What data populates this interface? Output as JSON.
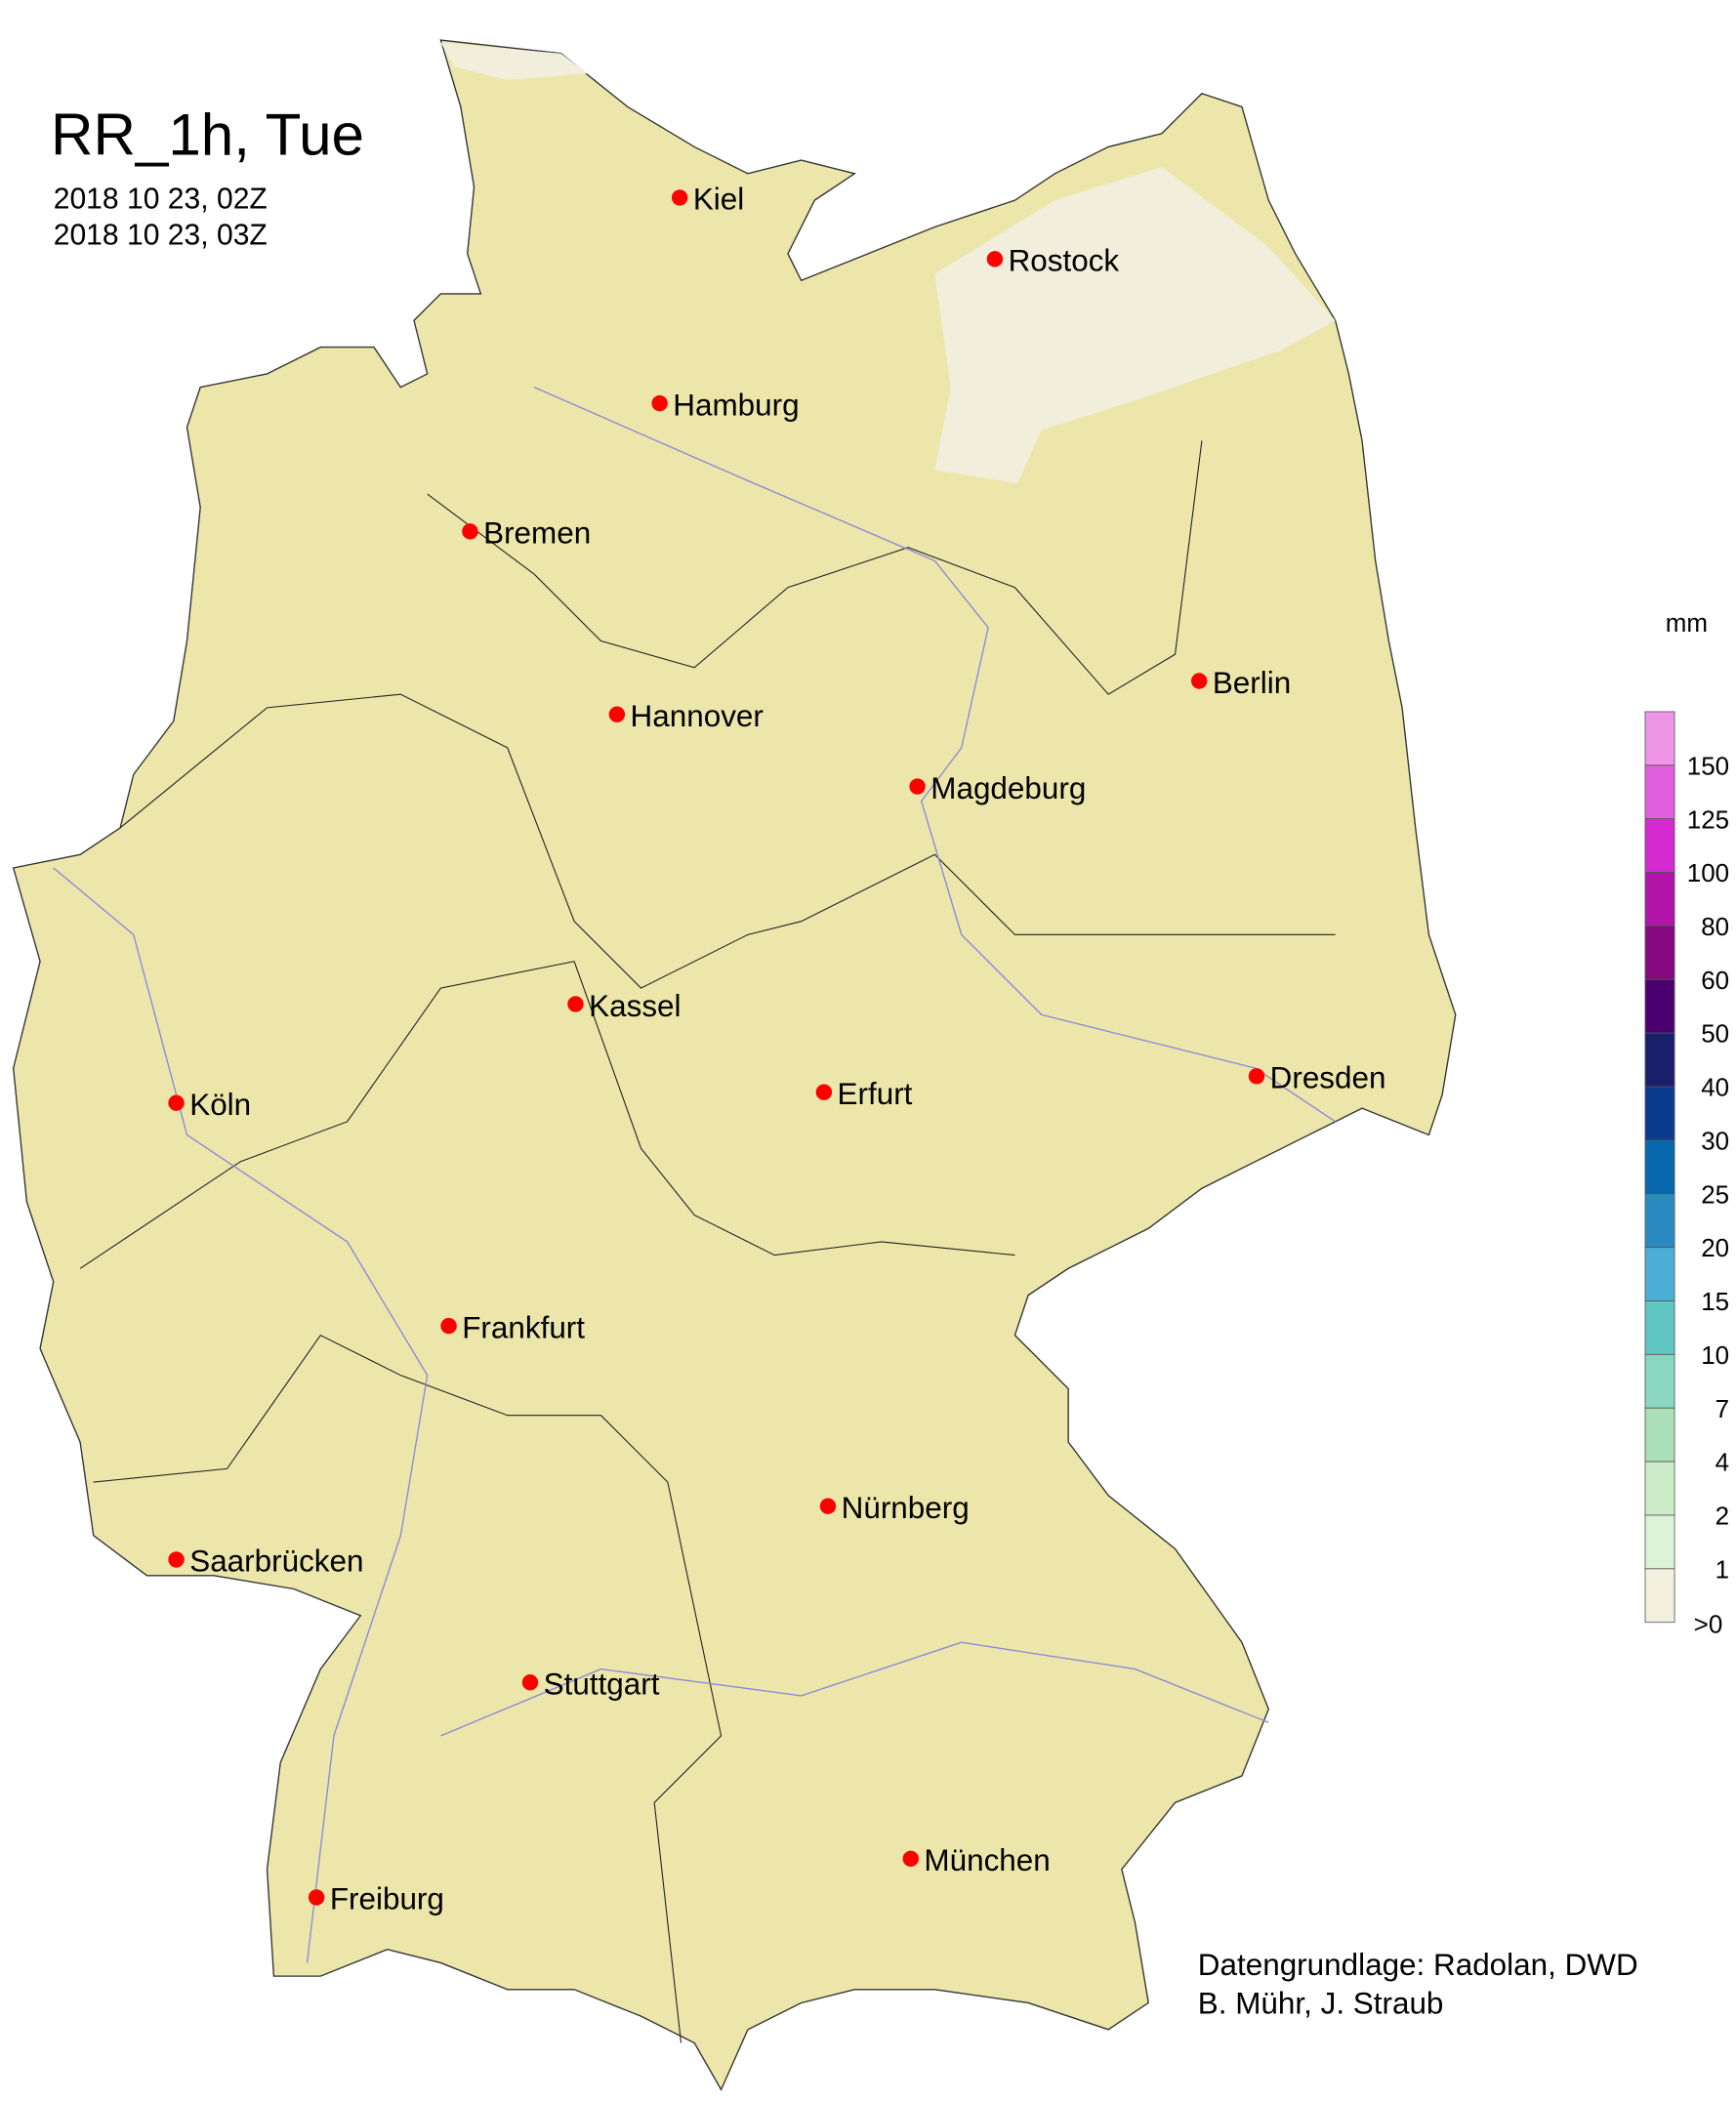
{
  "title": "RR_1h, Tue",
  "time_start": "2018 10 23, 02Z",
  "time_end": "2018 10 23, 03Z",
  "legend": {
    "unit": "mm",
    "classes": [
      {
        "label": "",
        "color": "#ee96e6"
      },
      {
        "label": "150",
        "color": "#e15fdf"
      },
      {
        "label": "125",
        "color": "#d42acf"
      },
      {
        "label": "100",
        "color": "#b014a8"
      },
      {
        "label": "80",
        "color": "#84087e"
      },
      {
        "label": "60",
        "color": "#4b0070"
      },
      {
        "label": "50",
        "color": "#1a1f6b"
      },
      {
        "label": "40",
        "color": "#0a3a8c"
      },
      {
        "label": "30",
        "color": "#0768ad"
      },
      {
        "label": "25",
        "color": "#2a8abf"
      },
      {
        "label": "20",
        "color": "#4aaed6"
      },
      {
        "label": "15",
        "color": "#60c6c4"
      },
      {
        "label": "10",
        "color": "#8ad6c0"
      },
      {
        "label": "7",
        "color": "#aadfb8"
      },
      {
        "label": "4",
        "color": "#cdebc8"
      },
      {
        "label": "2",
        "color": "#def2d8"
      },
      {
        "label": "1",
        "color": "#f2f0dc"
      }
    ],
    "bottom_label": ">0"
  },
  "map": {
    "land_color": "#ede6ab",
    "light_rain_color": "#f1eedb",
    "city_marker_color": "#ff0000",
    "cities": [
      "Kiel",
      "Rostock",
      "Hamburg",
      "Bremen",
      "Berlin",
      "Hannover",
      "Magdeburg",
      "Kassel",
      "Köln",
      "Erfurt",
      "Dresden",
      "Frankfurt",
      "Nürnberg",
      "Saarbrücken",
      "Stuttgart",
      "München",
      "Freiburg"
    ]
  },
  "credits": {
    "line1": "Datengrundlage: Radolan, DWD",
    "line2": "B. Mühr, J. Straub"
  }
}
